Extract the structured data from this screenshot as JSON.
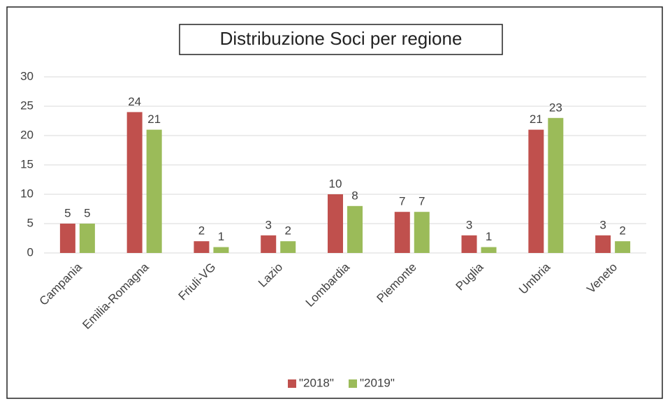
{
  "chart_data": {
    "type": "bar",
    "title": "Distribuzione Soci per regione",
    "categories": [
      "Campania",
      "Emilia-Romagna",
      "Friuli-VG",
      "Lazio",
      "Lombardia",
      "Piemonte",
      "Puglia",
      "Umbria",
      "Veneto"
    ],
    "series": [
      {
        "name": "\"2018\"",
        "color": "#c0504d",
        "values": [
          5,
          24,
          2,
          3,
          10,
          7,
          3,
          21,
          3
        ]
      },
      {
        "name": "\"2019\"",
        "color": "#9bbb59",
        "values": [
          5,
          21,
          1,
          2,
          8,
          7,
          1,
          23,
          2
        ]
      }
    ],
    "ylim": [
      0,
      30
    ],
    "yticks": [
      0,
      5,
      10,
      15,
      20,
      25,
      30
    ],
    "grid": true,
    "legend": "bottom"
  }
}
